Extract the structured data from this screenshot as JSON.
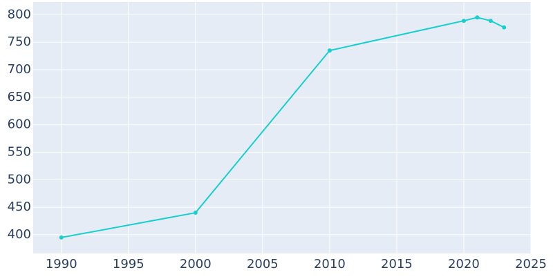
{
  "chart_data": {
    "type": "line",
    "x": [
      1990,
      2000,
      2010,
      2020,
      2021,
      2022,
      2023
    ],
    "series": [
      {
        "color": "#17cfcf",
        "values": [
          395,
          440,
          735,
          789,
          795,
          789,
          777
        ]
      }
    ],
    "xlim": [
      1987.9,
      2025
    ],
    "xticks": [
      1990,
      1995,
      2000,
      2005,
      2010,
      2015,
      2020,
      2025
    ],
    "ylim": [
      366,
      823
    ],
    "yticks": [
      400,
      450,
      500,
      550,
      600,
      650,
      700,
      750,
      800
    ],
    "grid": true
  }
}
